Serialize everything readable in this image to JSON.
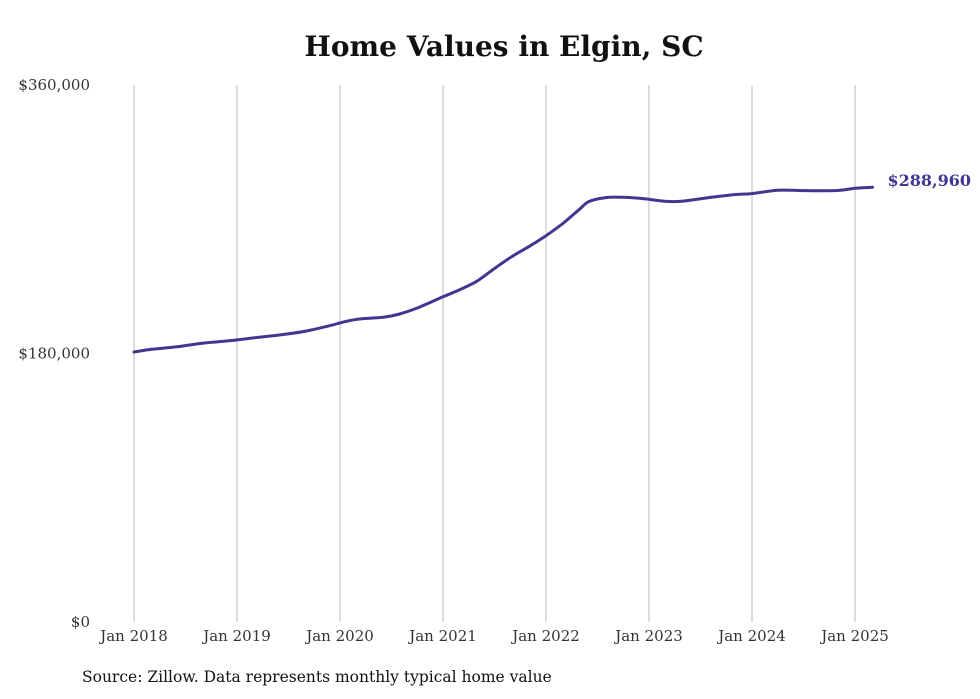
{
  "chart_data": {
    "type": "line",
    "title": "Home Values in Elgin, SC",
    "xlabel": "",
    "ylabel": "",
    "ylim": [
      0,
      360000
    ],
    "y_ticks": [
      {
        "value": 0,
        "label": "$0"
      },
      {
        "value": 180000,
        "label": "$180,000"
      },
      {
        "value": 360000,
        "label": "$360,000"
      }
    ],
    "x_ticks": [
      {
        "value": 2018,
        "label": "Jan 2018"
      },
      {
        "value": 2019,
        "label": "Jan 2019"
      },
      {
        "value": 2020,
        "label": "Jan 2020"
      },
      {
        "value": 2021,
        "label": "Jan 2021"
      },
      {
        "value": 2022,
        "label": "Jan 2022"
      },
      {
        "value": 2023,
        "label": "Jan 2023"
      },
      {
        "value": 2024,
        "label": "Jan 2024"
      },
      {
        "value": 2025,
        "label": "Jan 2025"
      }
    ],
    "xlim": [
      2018,
      2025
    ],
    "grid": "vertical",
    "line_color": "#3f3790",
    "series": [
      {
        "values": [
          {
            "x": 2018.0,
            "y": 181000
          },
          {
            "x": 2018.17,
            "y": 182800
          },
          {
            "x": 2018.42,
            "y": 184500
          },
          {
            "x": 2018.67,
            "y": 187000
          },
          {
            "x": 2018.92,
            "y": 188500
          },
          {
            "x": 2019.17,
            "y": 190500
          },
          {
            "x": 2019.42,
            "y": 192500
          },
          {
            "x": 2019.67,
            "y": 195000
          },
          {
            "x": 2019.92,
            "y": 199000
          },
          {
            "x": 2020.0,
            "y": 200500
          },
          {
            "x": 2020.17,
            "y": 203000
          },
          {
            "x": 2020.42,
            "y": 204300
          },
          {
            "x": 2020.58,
            "y": 206500
          },
          {
            "x": 2020.75,
            "y": 210500
          },
          {
            "x": 2021.0,
            "y": 218000
          },
          {
            "x": 2021.17,
            "y": 223000
          },
          {
            "x": 2021.33,
            "y": 228500
          },
          {
            "x": 2021.5,
            "y": 237000
          },
          {
            "x": 2021.67,
            "y": 245000
          },
          {
            "x": 2021.83,
            "y": 251500
          },
          {
            "x": 2022.0,
            "y": 259000
          },
          {
            "x": 2022.17,
            "y": 267500
          },
          {
            "x": 2022.33,
            "y": 277000
          },
          {
            "x": 2022.42,
            "y": 282000
          },
          {
            "x": 2022.58,
            "y": 284500
          },
          {
            "x": 2022.75,
            "y": 284700
          },
          {
            "x": 2022.92,
            "y": 284000
          },
          {
            "x": 2023.17,
            "y": 282000
          },
          {
            "x": 2023.33,
            "y": 282200
          },
          {
            "x": 2023.58,
            "y": 284500
          },
          {
            "x": 2023.83,
            "y": 286500
          },
          {
            "x": 2024.0,
            "y": 287200
          },
          {
            "x": 2024.25,
            "y": 289500
          },
          {
            "x": 2024.5,
            "y": 289200
          },
          {
            "x": 2024.83,
            "y": 289300
          },
          {
            "x": 2025.0,
            "y": 290800
          },
          {
            "x": 2025.17,
            "y": 291500
          }
        ]
      }
    ],
    "end_label": "$288,960",
    "source": "Source: Zillow. Data represents monthly typical home value"
  }
}
